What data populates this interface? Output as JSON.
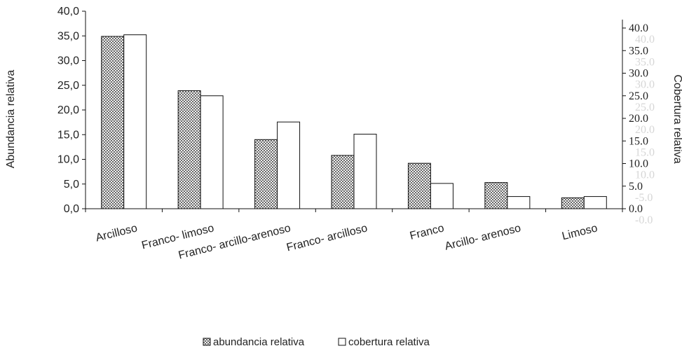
{
  "chart_data": {
    "type": "bar",
    "categories": [
      "Arcilloso",
      "Franco- limoso",
      "Franco- arcillo-arenoso",
      "Franco- arcilloso",
      "Franco",
      "Arcillo- arenoso",
      "Limoso"
    ],
    "series": [
      {
        "name": "abundancia relativa",
        "axis": "left",
        "pattern": "crosshatch",
        "values": [
          34.9,
          23.9,
          14.0,
          10.8,
          9.2,
          5.3,
          2.2
        ]
      },
      {
        "name": "cobertura relativa",
        "axis": "right",
        "pattern": "white",
        "values": [
          38.5,
          25.0,
          19.2,
          16.5,
          5.6,
          2.7,
          2.7
        ]
      }
    ],
    "ylabel": "Abundancia relativa",
    "y2label": "Cobertura relativa",
    "ylim": [
      0,
      40
    ],
    "y2lim": [
      0,
      42.5
    ],
    "yticks": [
      "0,0",
      "5,0",
      "10,0",
      "15,0",
      "20,0",
      "25,0",
      "30,0",
      "35,0",
      "40,0"
    ],
    "y2ticks": [
      "0.0",
      "5.0",
      "10.0",
      "15.0",
      "20.0",
      "25.0",
      "30.0",
      "35.0",
      "40.0"
    ],
    "y2_ghost_ticks": [
      "-0.0",
      "-5.0",
      "10.0",
      "15.0",
      "20.0",
      "25.0",
      "30.0",
      "35.0",
      "40.0"
    ],
    "legend_position": "bottom",
    "grid": false
  }
}
